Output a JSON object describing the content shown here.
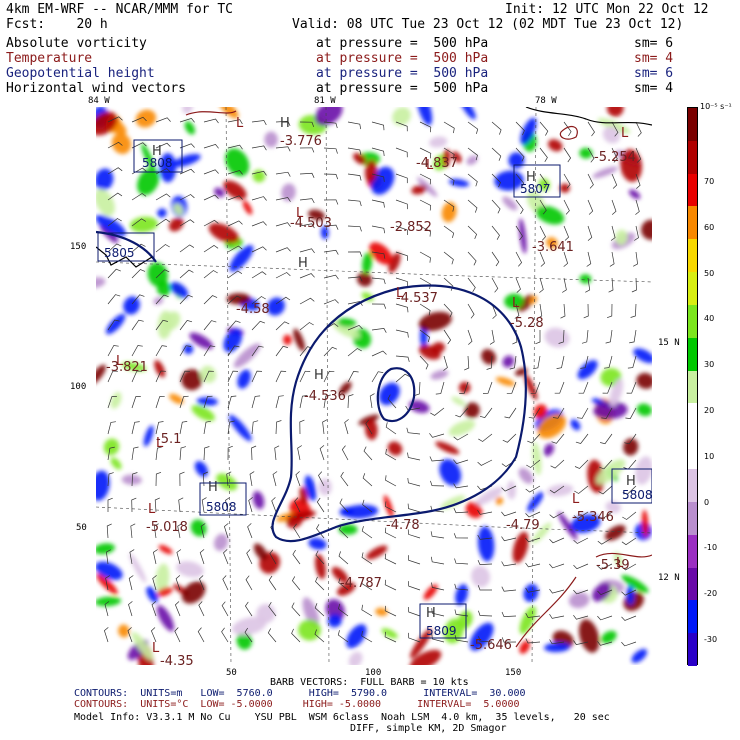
{
  "header": {
    "model": "4km EM-WRF -- NCAR/MMM for TC",
    "init": "Init: 12 UTC Mon 22 Oct 12",
    "fcst": "Fcst:    20 h",
    "valid": "Valid: 08 UTC Tue 23 Oct 12 (02 MDT Tue 23 Oct 12)"
  },
  "fields": [
    {
      "name": "Absolute vorticity",
      "at": "at pressure =  500 hPa",
      "sm": "sm= 6",
      "color": "#000000"
    },
    {
      "name": "Temperature",
      "at": "at pressure =  500 hPa",
      "sm": "sm= 4",
      "color": "#8b1a1a"
    },
    {
      "name": "Geopotential height",
      "at": "at pressure =  500 hPa",
      "sm": "sm= 6",
      "color": "#1a237e"
    },
    {
      "name": "Horizontal wind vectors",
      "at": "at pressure =  500 hPa",
      "sm": "sm= 4",
      "color": "#000000"
    }
  ],
  "axes": {
    "lon_labels": [
      "84 W",
      "81 W",
      "78 W"
    ],
    "lat_labels": [
      "15 N",
      "12 N"
    ],
    "x_ticks": [
      "50",
      "100",
      "150"
    ],
    "y_ticks": [
      "150",
      "100",
      "50"
    ]
  },
  "map_labels": {
    "highs": [
      "H",
      "H",
      "H",
      "H",
      "H",
      "H",
      "H",
      "H"
    ],
    "lows": [
      "L",
      "L",
      "L",
      "L",
      "L",
      "L",
      "L",
      "L",
      "L",
      "L",
      "L",
      "L"
    ],
    "height_boxes": [
      "5808",
      "5805",
      "5808",
      "5809",
      "5808",
      "5807"
    ],
    "temps": [
      "-3.776",
      "-4.837",
      "-5.254",
      "-4.503",
      "-2.852",
      "-3.641",
      "-3.821",
      "-4.537",
      "-5.28",
      "-4.536",
      "-4.78",
      "-5.018",
      "-5.346",
      "-4.79",
      "-4.787",
      "-5.646",
      "-4.58",
      "-5.1",
      "-5.39",
      "-4.35"
    ]
  },
  "colorbar": {
    "unit": "10⁻⁵ s⁻¹",
    "tick_labels": [
      "70",
      "60",
      "50",
      "40",
      "30",
      "20",
      "10",
      "0",
      "-10",
      "-20",
      "-30"
    ],
    "colors": [
      "#2a00c8",
      "#0018f8",
      "#6a0aa8",
      "#9b2fc2",
      "#b98fce",
      "#dcc4e4",
      "#ffffff",
      "#ffffff",
      "#c8f0a0",
      "#00c800",
      "#7ce61e",
      "#d8ee12",
      "#f8d800",
      "#f88800",
      "#e80000",
      "#b00000",
      "#7a0000"
    ]
  },
  "footer": {
    "barb": "BARB VECTORS:  FULL BARB = 10 kts",
    "contour1": "CONTOURS:  UNITS=m   LOW=  5760.0      HIGH=  5790.0      INTERVAL=  30.000",
    "contour2": "CONTOURS:  UNITS=°C  LOW= -5.0000     HIGH= -5.0000      INTERVAL=  5.0000",
    "info1": "Model Info: V3.3.1 M No Cu    YSU PBL  WSM 6class  Noah LSM  4.0 km,  35 levels,   20 sec",
    "info2": "DIFF, simple KM, 2D Smagor"
  }
}
